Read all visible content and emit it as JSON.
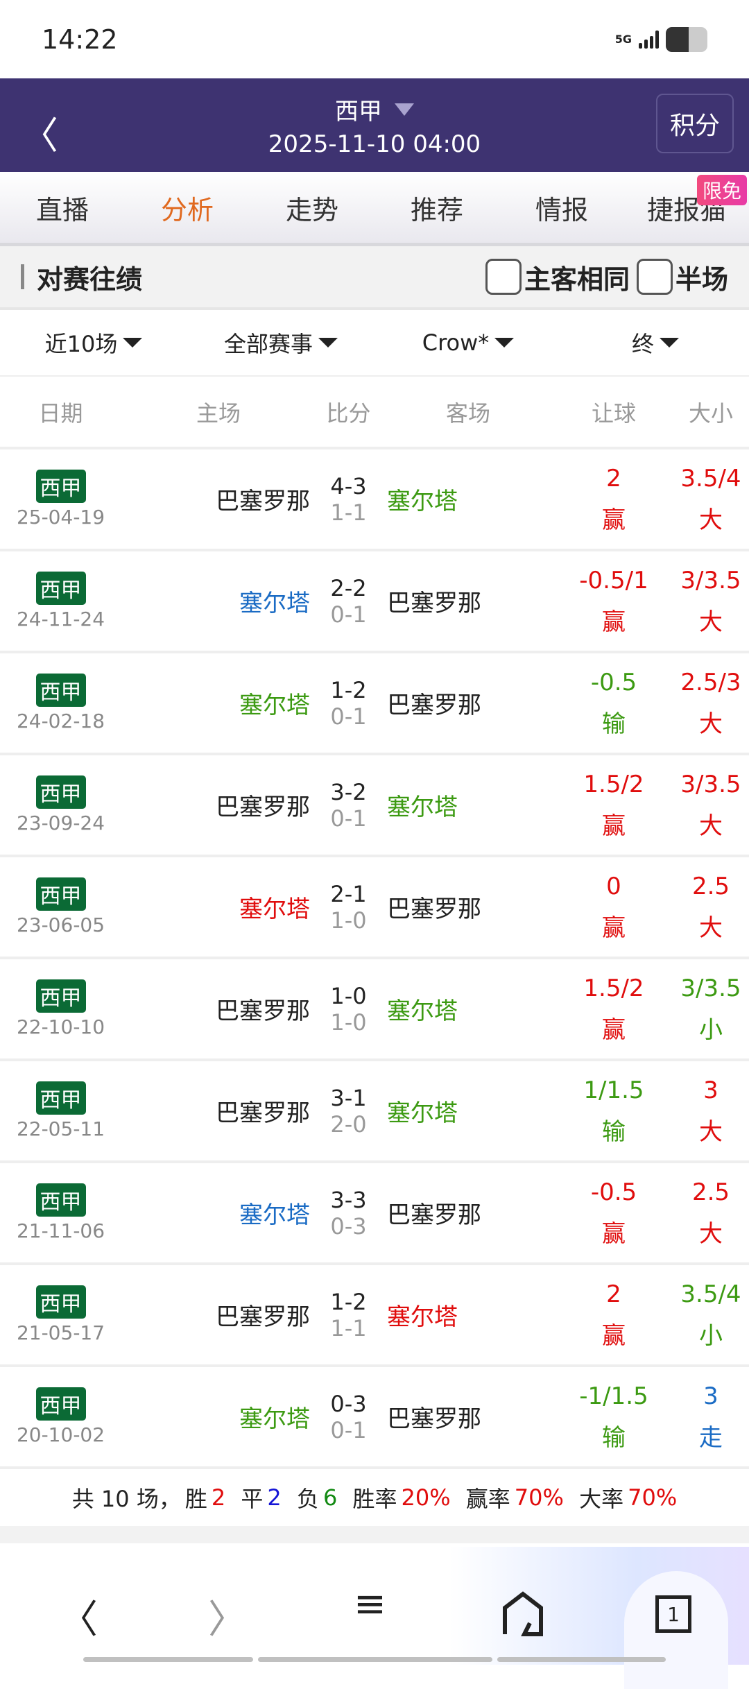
{
  "status": {
    "time": "14:22",
    "network": "5G",
    "battery_level": 0.55
  },
  "header": {
    "league": "西甲",
    "datetime": "2025-11-10 04:00",
    "standings_button": "积分",
    "back_icon": "chevron-left-icon"
  },
  "tabs": [
    {
      "label": "直播"
    },
    {
      "label": "分析",
      "active": true
    },
    {
      "label": "走势"
    },
    {
      "label": "推荐"
    },
    {
      "label": "情报"
    },
    {
      "label": "捷报猫"
    }
  ],
  "tab_badge": "限免",
  "section": {
    "title": "对赛往绩",
    "same_home_away": "主客相同",
    "half_time": "半场",
    "same_home_away_checked": false,
    "half_time_checked": false
  },
  "filters": [
    "近10场",
    "全部赛事",
    "Crow*",
    "终"
  ],
  "columns": [
    "日期",
    "主场",
    "比分",
    "客场",
    "让球",
    "大小"
  ],
  "colors": {
    "red": "#e00d0d",
    "green": "#3c9a12",
    "blue": "#1a6bc4",
    "black": "#222222"
  },
  "rows": [
    {
      "league": "西甲",
      "date": "25-04-19",
      "home": "巴塞罗那",
      "home_color": "#222222",
      "ft": "4-3",
      "ht": "1-1",
      "away": "塞尔塔",
      "away_color": "#3c9a12",
      "hc": "2",
      "hc_res": "赢",
      "hc_color": "#e00d0d",
      "ou": "3.5/4",
      "ou_res": "大",
      "ou_color": "#e00d0d"
    },
    {
      "league": "西甲",
      "date": "24-11-24",
      "home": "塞尔塔",
      "home_color": "#1a6bc4",
      "ft": "2-2",
      "ht": "0-1",
      "away": "巴塞罗那",
      "away_color": "#222222",
      "hc": "-0.5/1",
      "hc_res": "赢",
      "hc_color": "#e00d0d",
      "ou": "3/3.5",
      "ou_res": "大",
      "ou_color": "#e00d0d"
    },
    {
      "league": "西甲",
      "date": "24-02-18",
      "home": "塞尔塔",
      "home_color": "#3c9a12",
      "ft": "1-2",
      "ht": "0-1",
      "away": "巴塞罗那",
      "away_color": "#222222",
      "hc": "-0.5",
      "hc_res": "输",
      "hc_color": "#3c9a12",
      "ou": "2.5/3",
      "ou_res": "大",
      "ou_color": "#e00d0d"
    },
    {
      "league": "西甲",
      "date": "23-09-24",
      "home": "巴塞罗那",
      "home_color": "#222222",
      "ft": "3-2",
      "ht": "0-1",
      "away": "塞尔塔",
      "away_color": "#3c9a12",
      "hc": "1.5/2",
      "hc_res": "赢",
      "hc_color": "#e00d0d",
      "ou": "3/3.5",
      "ou_res": "大",
      "ou_color": "#e00d0d"
    },
    {
      "league": "西甲",
      "date": "23-06-05",
      "home": "塞尔塔",
      "home_color": "#e00d0d",
      "ft": "2-1",
      "ht": "1-0",
      "away": "巴塞罗那",
      "away_color": "#222222",
      "hc": "0",
      "hc_res": "赢",
      "hc_color": "#e00d0d",
      "ou": "2.5",
      "ou_res": "大",
      "ou_color": "#e00d0d"
    },
    {
      "league": "西甲",
      "date": "22-10-10",
      "home": "巴塞罗那",
      "home_color": "#222222",
      "ft": "1-0",
      "ht": "1-0",
      "away": "塞尔塔",
      "away_color": "#3c9a12",
      "hc": "1.5/2",
      "hc_res": "赢",
      "hc_color": "#e00d0d",
      "ou": "3/3.5",
      "ou_res": "小",
      "ou_color": "#3c9a12"
    },
    {
      "league": "西甲",
      "date": "22-05-11",
      "home": "巴塞罗那",
      "home_color": "#222222",
      "ft": "3-1",
      "ht": "2-0",
      "away": "塞尔塔",
      "away_color": "#3c9a12",
      "hc": "1/1.5",
      "hc_res": "输",
      "hc_color": "#3c9a12",
      "ou": "3",
      "ou_res": "大",
      "ou_color": "#e00d0d"
    },
    {
      "league": "西甲",
      "date": "21-11-06",
      "home": "塞尔塔",
      "home_color": "#1a6bc4",
      "ft": "3-3",
      "ht": "0-3",
      "away": "巴塞罗那",
      "away_color": "#222222",
      "hc": "-0.5",
      "hc_res": "赢",
      "hc_color": "#e00d0d",
      "ou": "2.5",
      "ou_res": "大",
      "ou_color": "#e00d0d"
    },
    {
      "league": "西甲",
      "date": "21-05-17",
      "home": "巴塞罗那",
      "home_color": "#222222",
      "ft": "1-2",
      "ht": "1-1",
      "away": "塞尔塔",
      "away_color": "#e00d0d",
      "hc": "2",
      "hc_res": "赢",
      "hc_color": "#e00d0d",
      "ou": "3.5/4",
      "ou_res": "小",
      "ou_color": "#3c9a12"
    },
    {
      "league": "西甲",
      "date": "20-10-02",
      "home": "塞尔塔",
      "home_color": "#3c9a12",
      "ft": "0-3",
      "ht": "0-1",
      "away": "巴塞罗那",
      "away_color": "#222222",
      "hc": "-1/1.5",
      "hc_res": "输",
      "hc_color": "#3c9a12",
      "ou": "3",
      "ou_res": "走",
      "ou_color": "#1a6bc4"
    }
  ],
  "summary": {
    "total_label": "共 10 场，",
    "win_label": "胜",
    "win": "2",
    "draw_label": "平",
    "draw": "2",
    "loss_label": "负",
    "loss": "6",
    "win_rate_label": "胜率",
    "win_rate": "20%",
    "hc_rate_label": "赢率",
    "hc_rate": "70%",
    "over_rate_label": "大率",
    "over_rate": "70%"
  },
  "nav": {
    "tab_count": "1"
  }
}
